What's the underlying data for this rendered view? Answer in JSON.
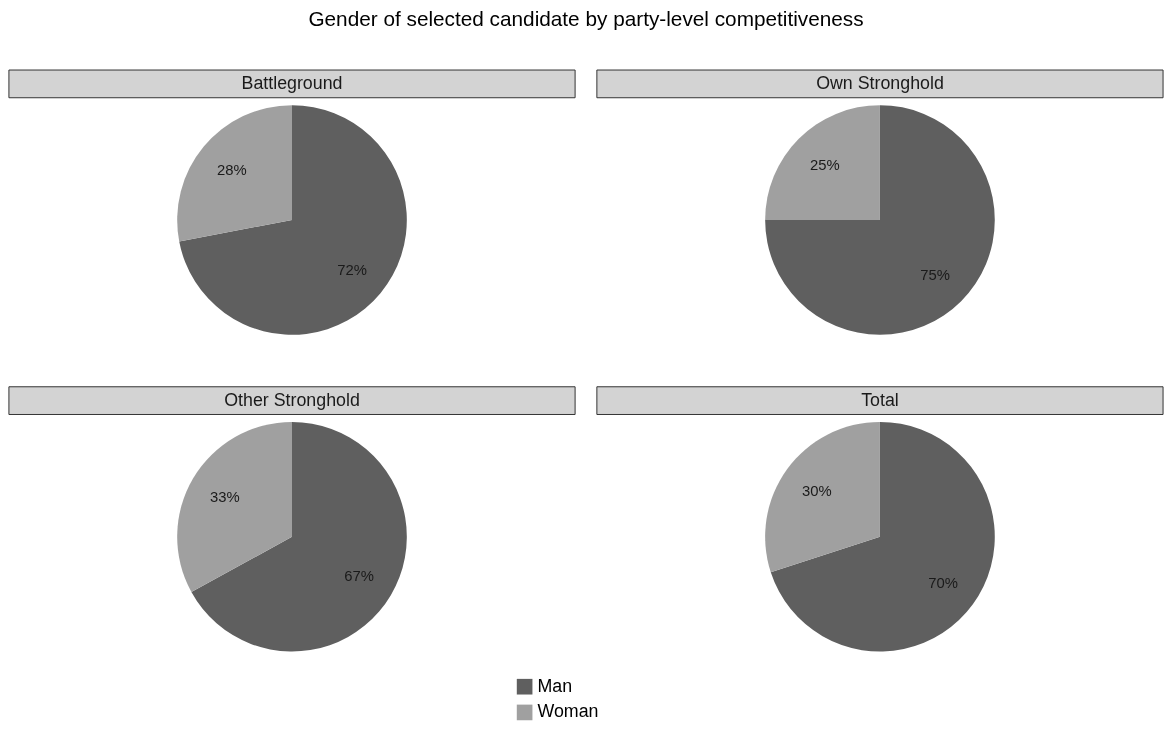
{
  "chart_data": [
    {
      "type": "pie",
      "title": "Gender of selected candidate by party-level competitiveness",
      "subtitle": "Battleground",
      "categories": [
        "Man",
        "Woman"
      ],
      "values": [
        72,
        28
      ],
      "colors": [
        "#5f5f5f",
        "#a0a0a0"
      ],
      "value_labels": [
        "72%",
        "28%"
      ],
      "legend": "bottom"
    },
    {
      "type": "pie",
      "subtitle": "Own Stronghold",
      "categories": [
        null,
        null
      ],
      "values": [
        75,
        25
      ],
      "colors": [
        "#5f5f5f",
        "#a0a0a0"
      ],
      "value_labels": [
        "75%",
        "25%"
      ]
    },
    {
      "type": "pie",
      "subtitle": "Other Stronghold",
      "categories": [
        null,
        null
      ],
      "values": [
        67,
        33
      ],
      "colors": [
        "#5f5f5f",
        "#a0a0a0"
      ],
      "value_labels": [
        "67%",
        "33%"
      ]
    },
    {
      "type": "pie",
      "subtitle": "Total",
      "categories": [
        null,
        null
      ],
      "values": [
        70,
        30
      ],
      "colors": [
        "#5f5f5f",
        "#a0a0a0"
      ],
      "value_labels": [
        "70%",
        "30%"
      ]
    }
  ]
}
